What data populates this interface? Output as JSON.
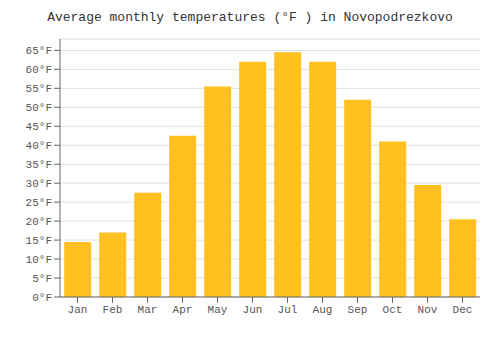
{
  "chart_data": {
    "type": "bar",
    "title": "Average monthly temperatures (°F ) in Novopodrezkovo",
    "categories": [
      "Jan",
      "Feb",
      "Mar",
      "Apr",
      "May",
      "Jun",
      "Jul",
      "Aug",
      "Sep",
      "Oct",
      "Nov",
      "Dec"
    ],
    "values": [
      14.5,
      17.0,
      27.5,
      42.5,
      55.5,
      62.0,
      64.5,
      62.0,
      52.0,
      41.0,
      29.5,
      20.5
    ],
    "color": "#FFC020",
    "ylim": [
      0,
      68
    ],
    "yticks": [
      {
        "value": 0,
        "label": "0°F"
      },
      {
        "value": 5,
        "label": "5°F"
      },
      {
        "value": 10,
        "label": "10°F"
      },
      {
        "value": 15,
        "label": "15°F"
      },
      {
        "value": 20,
        "label": "20°F"
      },
      {
        "value": 25,
        "label": "25°F"
      },
      {
        "value": 30,
        "label": "30°F"
      },
      {
        "value": 35,
        "label": "35°F"
      },
      {
        "value": 40,
        "label": "40°F"
      },
      {
        "value": 45,
        "label": "45°F"
      },
      {
        "value": 50,
        "label": "50°F"
      },
      {
        "value": 55,
        "label": "55°F"
      },
      {
        "value": 60,
        "label": "60°F"
      },
      {
        "value": 65,
        "label": "65°F"
      }
    ],
    "grid": true
  }
}
